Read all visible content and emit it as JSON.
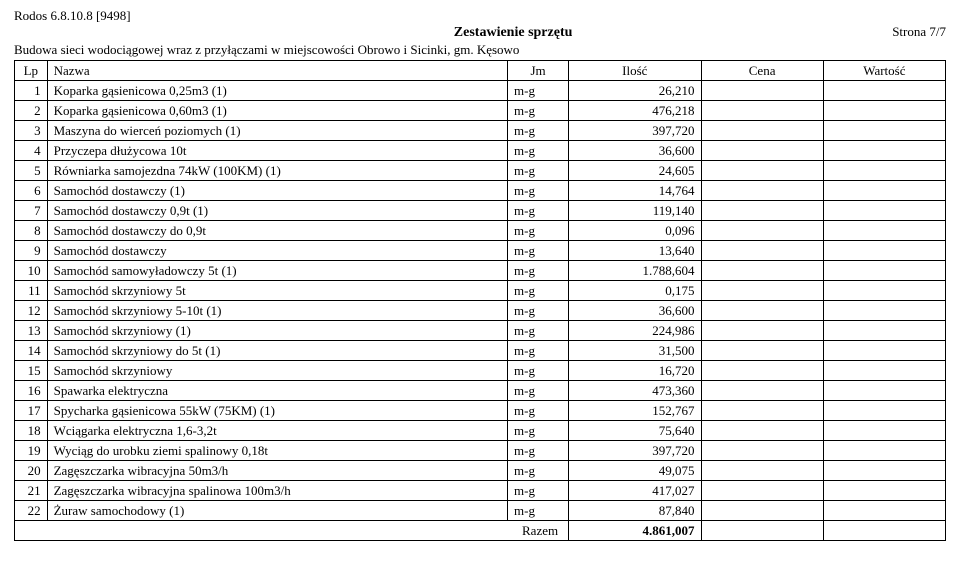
{
  "header": {
    "software": "Rodos 6.8.10.8 [9498]",
    "title": "Zestawienie sprzętu",
    "page": "Strona 7/7",
    "subtitle": "Budowa sieci wodociągowej wraz z przyłączami w miejscowości Obrowo i Sicinki, gm. Kęsowo"
  },
  "table": {
    "columns": [
      "Lp",
      "Nazwa",
      "Jm",
      "Ilość",
      "Cena",
      "Wartość"
    ],
    "rows": [
      {
        "lp": "1",
        "name": "Koparka gąsienicowa 0,25m3 (1)",
        "jm": "m-g",
        "qty": "26,210"
      },
      {
        "lp": "2",
        "name": "Koparka gąsienicowa 0,60m3 (1)",
        "jm": "m-g",
        "qty": "476,218"
      },
      {
        "lp": "3",
        "name": "Maszyna do wierceń poziomych (1)",
        "jm": "m-g",
        "qty": "397,720"
      },
      {
        "lp": "4",
        "name": "Przyczepa dłużycowa 10t",
        "jm": "m-g",
        "qty": "36,600"
      },
      {
        "lp": "5",
        "name": "Równiarka samojezdna  74kW (100KM) (1)",
        "jm": "m-g",
        "qty": "24,605"
      },
      {
        "lp": "6",
        "name": "Samochód dostawczy (1)",
        "jm": "m-g",
        "qty": "14,764"
      },
      {
        "lp": "7",
        "name": "Samochód dostawczy 0,9t (1)",
        "jm": "m-g",
        "qty": "119,140"
      },
      {
        "lp": "8",
        "name": "Samochód dostawczy do 0,9t",
        "jm": "m-g",
        "qty": "0,096"
      },
      {
        "lp": "9",
        "name": "Samochód dostawczy",
        "jm": "m-g",
        "qty": "13,640"
      },
      {
        "lp": "10",
        "name": "Samochód samowyładowczy  5t (1)",
        "jm": "m-g",
        "qty": "1.788,604"
      },
      {
        "lp": "11",
        "name": "Samochód skrzyniowy  5t",
        "jm": "m-g",
        "qty": "0,175"
      },
      {
        "lp": "12",
        "name": "Samochód skrzyniowy 5-10t (1)",
        "jm": "m-g",
        "qty": "36,600"
      },
      {
        "lp": "13",
        "name": "Samochód skrzyniowy (1)",
        "jm": "m-g",
        "qty": "224,986"
      },
      {
        "lp": "14",
        "name": "Samochód skrzyniowy do 5t (1)",
        "jm": "m-g",
        "qty": "31,500"
      },
      {
        "lp": "15",
        "name": "Samochód skrzyniowy",
        "jm": "m-g",
        "qty": "16,720"
      },
      {
        "lp": "16",
        "name": "Spawarka elektryczna",
        "jm": "m-g",
        "qty": "473,360"
      },
      {
        "lp": "17",
        "name": "Spycharka gąsienicowa  55kW (75KM) (1)",
        "jm": "m-g",
        "qty": "152,767"
      },
      {
        "lp": "18",
        "name": "Wciągarka elektryczna 1,6-3,2t",
        "jm": "m-g",
        "qty": "75,640"
      },
      {
        "lp": "19",
        "name": "Wyciąg do urobku ziemi spalinowy 0,18t",
        "jm": "m-g",
        "qty": "397,720"
      },
      {
        "lp": "20",
        "name": "Zagęszczarka wibracyjna 50m3/h",
        "jm": "m-g",
        "qty": "49,075"
      },
      {
        "lp": "21",
        "name": "Zagęszczarka wibracyjna spalinowa 100m3/h",
        "jm": "m-g",
        "qty": "417,027"
      },
      {
        "lp": "22",
        "name": "Żuraw samochodowy (1)",
        "jm": "m-g",
        "qty": "87,840"
      }
    ],
    "total_label": "Razem",
    "total_value": "4.861,007"
  },
  "style": {
    "font_family": "Times New Roman",
    "font_size_pt": 10,
    "border_color": "#000000",
    "background_color": "#ffffff",
    "text_color": "#000000"
  }
}
